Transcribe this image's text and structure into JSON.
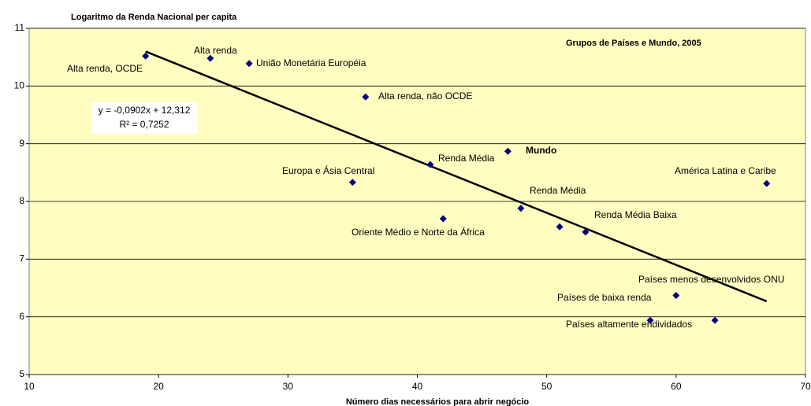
{
  "chart_data": {
    "type": "scatter",
    "title": "Logaritmo da Renda Nacional per capita",
    "subtitle": "Grupos de Países e Mundo, 2005",
    "x_label": "Número dias necessários para abrir negócio",
    "x": [
      19,
      24,
      27,
      36,
      47,
      41,
      35,
      67,
      48,
      42,
      51,
      53,
      60,
      58,
      63
    ],
    "values": [
      10.52,
      10.48,
      10.39,
      9.81,
      8.87,
      8.64,
      8.33,
      8.31,
      7.88,
      7.7,
      7.56,
      7.47,
      6.37,
      5.94,
      5.94
    ],
    "labels": [
      "Alta renda, OCDE",
      "Alta renda",
      "União Monetária Européia",
      "Alta renda, não OCDE",
      "Mundo",
      "Renda Média",
      "Europa e Ásia Central",
      "América Latina e Caribe",
      "Renda Média",
      "Oriente Médio e Norte da África",
      null,
      "Renda Média Baixa",
      "Países de baixa renda",
      "Países altamente endividados",
      "Países menos desenvolvidos ONU"
    ],
    "color": "#000080",
    "trendline": {
      "slope": -0.0902,
      "intercept": 12.312,
      "x": [
        19,
        67
      ],
      "equation": "y = -0,0902x + 12,312",
      "r2_label": "R² = 0,7252",
      "color": "#000000"
    },
    "xlim": [
      10,
      70
    ],
    "xticks": [
      10,
      20,
      30,
      40,
      50,
      60,
      70
    ],
    "ylim": [
      5,
      11
    ],
    "yticks": [
      5,
      6,
      7,
      8,
      9,
      10,
      11
    ],
    "grid": true,
    "background": "#fffdc0"
  }
}
